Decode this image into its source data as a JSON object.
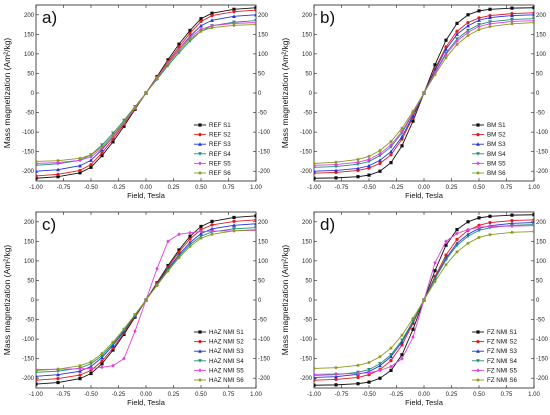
{
  "chart_data": [
    {
      "type": "line",
      "panel": "a)",
      "xlabel": "Field, Tesla",
      "ylabel": "Mass magnetization (Am²/kg)",
      "xlim": [
        -1.0,
        1.0
      ],
      "ylim": [
        -225,
        225
      ],
      "xticks": [
        "-1.00",
        "-0.75",
        "-0.50",
        "-0.25",
        "0.00",
        "0.25",
        "0.50",
        "0.75",
        "1.00"
      ],
      "yticks": [
        "-200",
        "-150",
        "-100",
        "-50",
        "0",
        "50",
        "100",
        "150",
        "200"
      ],
      "legend": "bottom-right",
      "x": [
        -1.0,
        -0.8,
        -0.6,
        -0.5,
        -0.4,
        -0.3,
        -0.2,
        -0.1,
        0.0,
        0.1,
        0.2,
        0.3,
        0.4,
        0.5,
        0.6,
        0.8,
        1.0
      ],
      "series": [
        {
          "name": "REF S1",
          "color": "#111111",
          "marker": "square",
          "values": [
            -218,
            -214,
            -204,
            -190,
            -160,
            -125,
            -85,
            -42,
            0,
            42,
            85,
            125,
            160,
            190,
            204,
            214,
            218
          ]
        },
        {
          "name": "REF S2",
          "color": "#e41a1c",
          "marker": "circle",
          "values": [
            -212,
            -208,
            -198,
            -183,
            -153,
            -118,
            -80,
            -40,
            0,
            40,
            80,
            118,
            153,
            183,
            198,
            208,
            212
          ]
        },
        {
          "name": "REF S3",
          "color": "#2233dd",
          "marker": "triangle",
          "values": [
            -200,
            -196,
            -186,
            -172,
            -145,
            -112,
            -76,
            -38,
            0,
            38,
            76,
            112,
            145,
            172,
            186,
            196,
            200
          ]
        },
        {
          "name": "REF S4",
          "color": "#1e8e7a",
          "marker": "triangle-down",
          "values": [
            -185,
            -181,
            -172,
            -158,
            -133,
            -103,
            -70,
            -35,
            0,
            35,
            70,
            103,
            133,
            158,
            172,
            181,
            185
          ]
        },
        {
          "name": "REF S5",
          "color": "#e040e0",
          "marker": "diamond",
          "values": [
            -180,
            -178,
            -172,
            -163,
            -142,
            -112,
            -77,
            -39,
            0,
            39,
            77,
            112,
            142,
            163,
            172,
            178,
            180
          ]
        },
        {
          "name": "REF S6",
          "color": "#8a9a1c",
          "marker": "star",
          "values": [
            -175,
            -173,
            -167,
            -158,
            -138,
            -108,
            -74,
            -37,
            0,
            37,
            74,
            108,
            138,
            158,
            167,
            173,
            175
          ]
        }
      ]
    },
    {
      "type": "line",
      "panel": "b)",
      "xlabel": "Field, Tesla",
      "ylabel": "Mass magnetization (Am²/kg)",
      "xlim": [
        -1.0,
        1.0
      ],
      "ylim": [
        -225,
        225
      ],
      "xticks": [
        "-1.00",
        "-0.75",
        "-0.50",
        "-0.25",
        "0.00",
        "0.25",
        "0.50",
        "0.75",
        "1.00"
      ],
      "yticks": [
        "-200",
        "-150",
        "-100",
        "-50",
        "0",
        "50",
        "100",
        "150",
        "200"
      ],
      "legend": "bottom-right",
      "x": [
        -1.0,
        -0.8,
        -0.6,
        -0.5,
        -0.4,
        -0.3,
        -0.2,
        -0.1,
        0.0,
        0.1,
        0.2,
        0.3,
        0.4,
        0.5,
        0.6,
        0.8,
        1.0
      ],
      "series": [
        {
          "name": "BM S1",
          "color": "#111111",
          "marker": "square",
          "values": [
            -218,
            -217,
            -214,
            -210,
            -200,
            -178,
            -135,
            -72,
            0,
            72,
            135,
            178,
            200,
            210,
            214,
            217,
            218
          ]
        },
        {
          "name": "BM S2",
          "color": "#e41a1c",
          "marker": "circle",
          "values": [
            -205,
            -203,
            -198,
            -192,
            -180,
            -158,
            -118,
            -62,
            0,
            62,
            118,
            158,
            180,
            192,
            198,
            203,
            205
          ]
        },
        {
          "name": "BM S3",
          "color": "#2233dd",
          "marker": "triangle",
          "values": [
            -200,
            -198,
            -193,
            -186,
            -172,
            -150,
            -112,
            -58,
            0,
            58,
            112,
            150,
            172,
            186,
            193,
            198,
            200
          ]
        },
        {
          "name": "BM S4",
          "color": "#1e8e7a",
          "marker": "triangle-down",
          "values": [
            -190,
            -188,
            -182,
            -175,
            -160,
            -138,
            -102,
            -53,
            0,
            53,
            102,
            138,
            160,
            175,
            182,
            188,
            190
          ]
        },
        {
          "name": "BM S5",
          "color": "#e040e0",
          "marker": "diamond",
          "values": [
            -185,
            -183,
            -177,
            -170,
            -155,
            -133,
            -98,
            -51,
            0,
            51,
            98,
            133,
            155,
            170,
            177,
            183,
            185
          ]
        },
        {
          "name": "BM S6",
          "color": "#8a9a1c",
          "marker": "star",
          "values": [
            -180,
            -177,
            -170,
            -162,
            -147,
            -124,
            -90,
            -47,
            0,
            47,
            90,
            124,
            147,
            162,
            170,
            177,
            180
          ]
        }
      ]
    },
    {
      "type": "line",
      "panel": "c)",
      "xlabel": "Field, Tesla",
      "ylabel": "Mass magnetization (Am²/kg)",
      "xlim": [
        -1.0,
        1.0
      ],
      "ylim": [
        -225,
        225
      ],
      "xticks": [
        "-1.00",
        "-0.75",
        "-0.50",
        "-0.25",
        "0.00",
        "0.25",
        "0.50",
        "0.75",
        "1.00"
      ],
      "yticks": [
        "-200",
        "-150",
        "-100",
        "-50",
        "0",
        "50",
        "100",
        "150",
        "200"
      ],
      "legend": "bottom-right",
      "x": [
        -1.0,
        -0.8,
        -0.6,
        -0.5,
        -0.4,
        -0.3,
        -0.2,
        -0.1,
        0.0,
        0.1,
        0.2,
        0.3,
        0.4,
        0.5,
        0.6,
        0.8,
        1.0
      ],
      "series": [
        {
          "name": "HAZ NMI S1",
          "color": "#111111",
          "marker": "square",
          "values": [
            -215,
            -211,
            -201,
            -188,
            -163,
            -128,
            -88,
            -44,
            0,
            44,
            88,
            128,
            163,
            188,
            201,
            211,
            215
          ]
        },
        {
          "name": "HAZ NMI S2",
          "color": "#e41a1c",
          "marker": "circle",
          "values": [
            -205,
            -201,
            -192,
            -180,
            -156,
            -123,
            -84,
            -42,
            0,
            42,
            84,
            123,
            156,
            180,
            192,
            201,
            205
          ]
        },
        {
          "name": "HAZ NMI S3",
          "color": "#2233dd",
          "marker": "triangle",
          "values": [
            -195,
            -191,
            -182,
            -170,
            -147,
            -116,
            -80,
            -40,
            0,
            40,
            80,
            116,
            147,
            170,
            182,
            191,
            195
          ]
        },
        {
          "name": "HAZ NMI S4",
          "color": "#1e8e7a",
          "marker": "triangle-down",
          "values": [
            -185,
            -182,
            -174,
            -163,
            -142,
            -112,
            -77,
            -39,
            0,
            39,
            77,
            112,
            142,
            163,
            174,
            182,
            185
          ]
        },
        {
          "name": "HAZ NMI S5",
          "color": "#e040e0",
          "marker": "diamond",
          "values": [
            -178,
            -177,
            -176,
            -175,
            -172,
            -168,
            -150,
            -80,
            0,
            80,
            150,
            168,
            172,
            175,
            176,
            177,
            178
          ]
        },
        {
          "name": "HAZ NMI S6",
          "color": "#8a9a1c",
          "marker": "star",
          "values": [
            -180,
            -177,
            -168,
            -158,
            -137,
            -108,
            -74,
            -37,
            0,
            37,
            74,
            108,
            137,
            158,
            168,
            177,
            180
          ]
        }
      ]
    },
    {
      "type": "line",
      "panel": "d)",
      "xlabel": "Field, Tesla",
      "ylabel": "Mass magnetization (Am²/kg)",
      "xlim": [
        -1.0,
        1.0
      ],
      "ylim": [
        -225,
        225
      ],
      "xticks": [
        "-1.00",
        "-0.75",
        "-0.50",
        "-0.25",
        "0.00",
        "0.25",
        "0.50",
        "0.75",
        "1.00"
      ],
      "yticks": [
        "-200",
        "-150",
        "-100",
        "-50",
        "0",
        "50",
        "100",
        "150",
        "200"
      ],
      "legend": "bottom-right",
      "x": [
        -1.0,
        -0.8,
        -0.6,
        -0.5,
        -0.4,
        -0.3,
        -0.2,
        -0.1,
        0.0,
        0.1,
        0.2,
        0.3,
        0.4,
        0.5,
        0.6,
        0.8,
        1.0
      ],
      "series": [
        {
          "name": "FZ NMI S1",
          "color": "#111111",
          "marker": "square",
          "values": [
            -218,
            -217,
            -214,
            -210,
            -200,
            -180,
            -140,
            -75,
            0,
            75,
            140,
            180,
            200,
            210,
            214,
            217,
            218
          ]
        },
        {
          "name": "FZ NMI S2",
          "color": "#e41a1c",
          "marker": "circle",
          "values": [
            -205,
            -203,
            -198,
            -191,
            -178,
            -155,
            -115,
            -60,
            0,
            60,
            115,
            155,
            178,
            191,
            198,
            203,
            205
          ]
        },
        {
          "name": "FZ NMI S3",
          "color": "#2233dd",
          "marker": "triangle",
          "values": [
            -198,
            -196,
            -190,
            -183,
            -168,
            -145,
            -107,
            -56,
            0,
            56,
            107,
            145,
            168,
            183,
            190,
            196,
            198
          ]
        },
        {
          "name": "FZ NMI S4",
          "color": "#1e8e7a",
          "marker": "triangle-down",
          "values": [
            -193,
            -191,
            -185,
            -178,
            -163,
            -140,
            -103,
            -54,
            0,
            54,
            103,
            140,
            163,
            178,
            185,
            191,
            193
          ]
        },
        {
          "name": "FZ NMI S5",
          "color": "#e040e0",
          "marker": "diamond",
          "values": [
            -190,
            -189,
            -188,
            -186,
            -180,
            -170,
            -150,
            -95,
            0,
            95,
            150,
            170,
            180,
            186,
            188,
            189,
            190
          ]
        },
        {
          "name": "FZ NMI S6",
          "color": "#8a9a1c",
          "marker": "star",
          "values": [
            -175,
            -173,
            -167,
            -160,
            -145,
            -123,
            -90,
            -47,
            0,
            47,
            90,
            123,
            145,
            160,
            167,
            173,
            175
          ]
        }
      ]
    }
  ]
}
